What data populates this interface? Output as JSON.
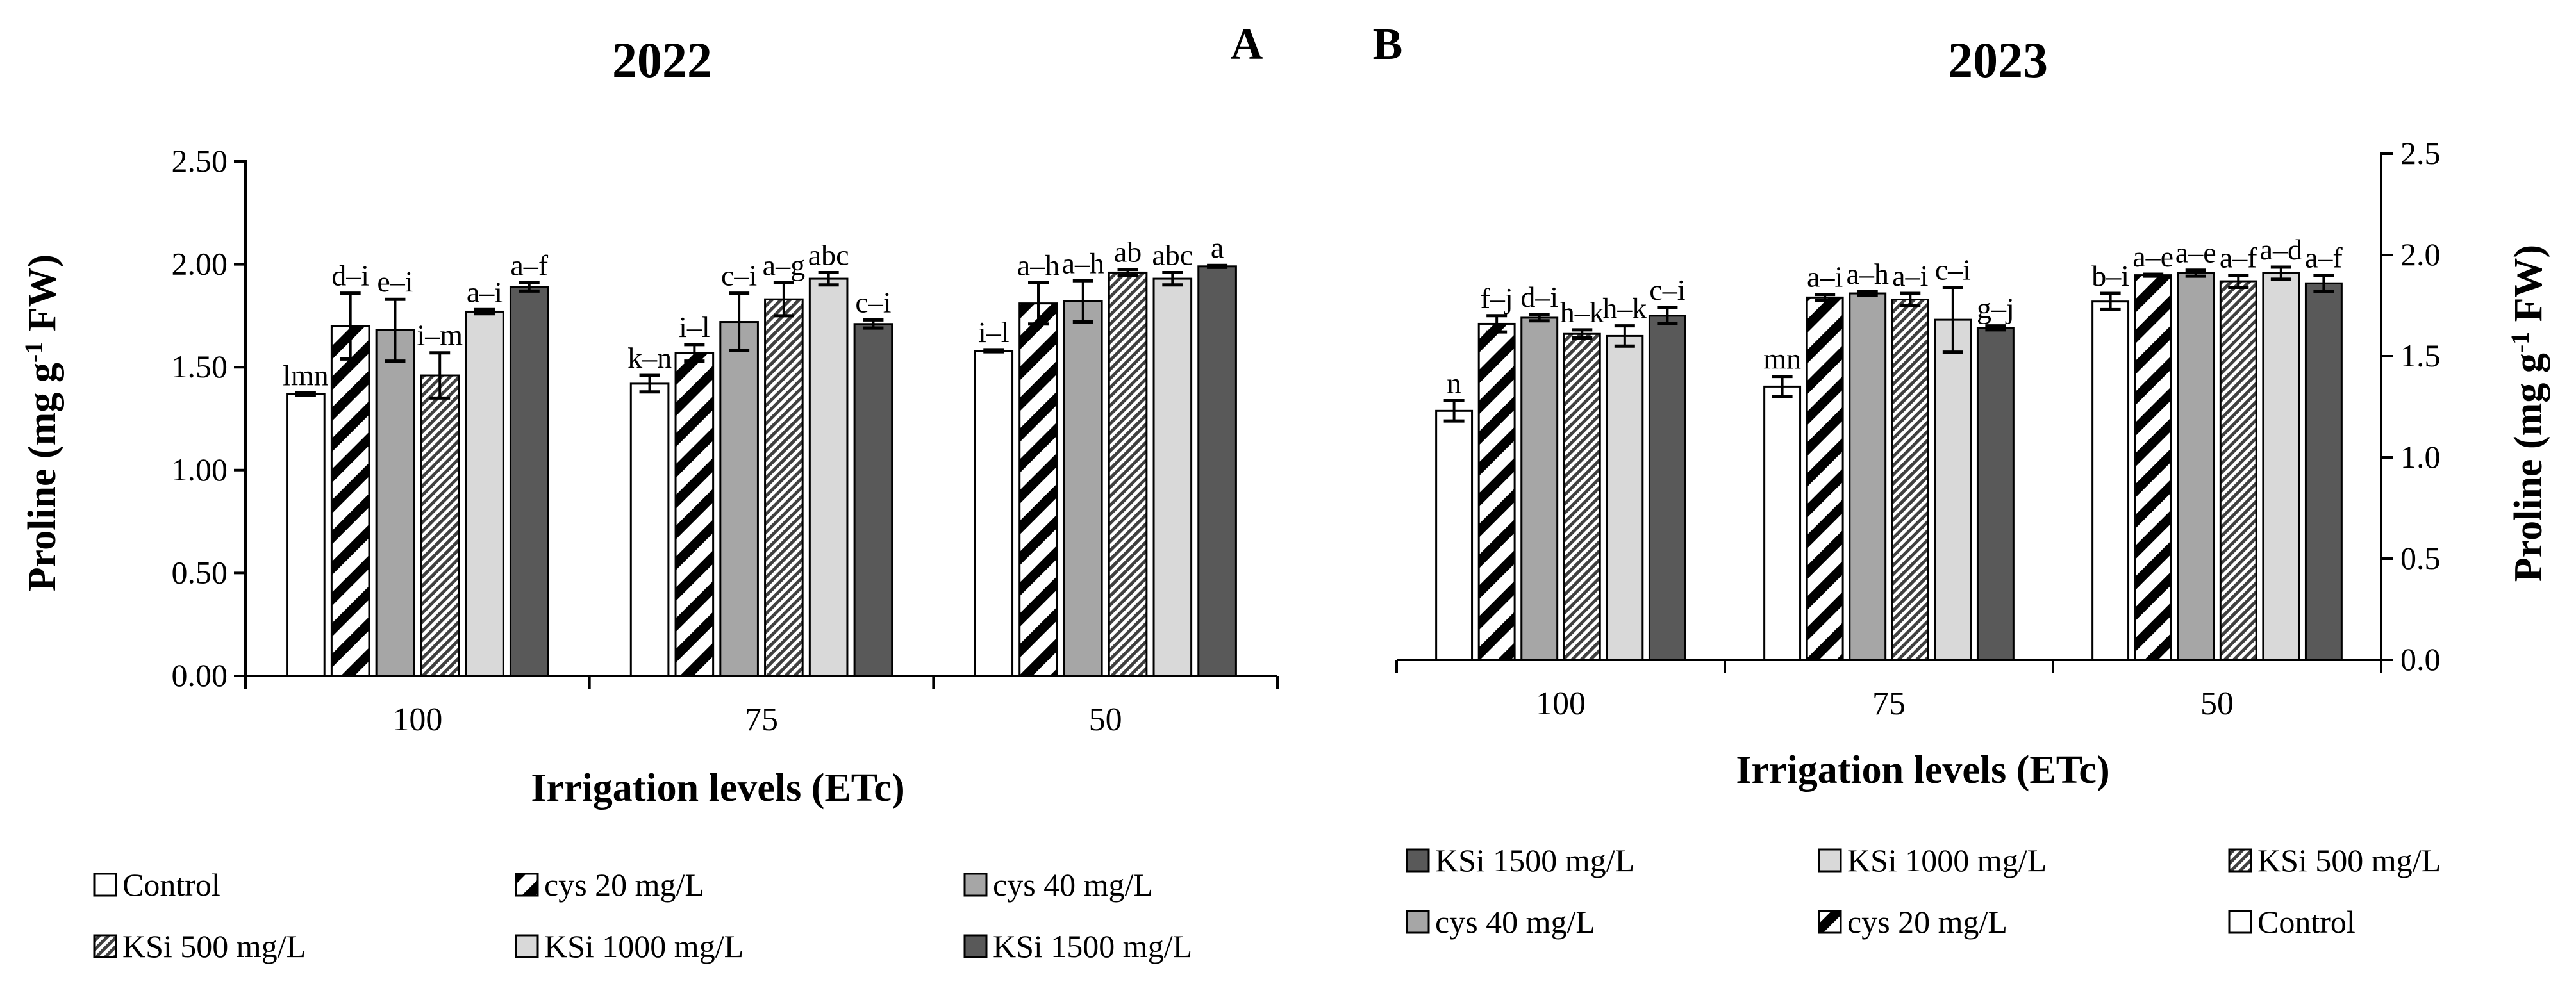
{
  "chart_data": [
    {
      "type": "bar",
      "panel_letter": "A",
      "title": "2022",
      "xlabel": "Irrigation levels (ETc)",
      "ylabel": "Proline (mg g",
      "ylabel_sup": "-1",
      "ylabel_end": " FW)",
      "yaxis_side": "left",
      "ylim": [
        0,
        2.5
      ],
      "ytick_values": [
        0,
        0.5,
        1.0,
        1.5,
        2.0,
        2.5
      ],
      "ytick_labels": [
        "0.00",
        "0.50",
        "1.00",
        "1.50",
        "2.00",
        "2.50"
      ],
      "categories": [
        "100",
        "75",
        "50"
      ],
      "series": [
        {
          "name": "Control",
          "pattern": "white",
          "values": [
            1.37,
            1.42,
            1.58
          ],
          "errors": [
            0.005,
            0.04,
            0.005
          ],
          "letters": [
            "lmn",
            "k–n",
            "i–l"
          ]
        },
        {
          "name": "cys 20 mg/L",
          "pattern": "bigstripe",
          "values": [
            1.7,
            1.57,
            1.81
          ],
          "errors": [
            0.16,
            0.04,
            0.1
          ],
          "letters": [
            "d–i",
            "i–l",
            "a–h"
          ]
        },
        {
          "name": "cys 40 mg/L",
          "pattern": "gray",
          "values": [
            1.68,
            1.72,
            1.82
          ],
          "errors": [
            0.15,
            0.14,
            0.1
          ],
          "letters": [
            "e–i",
            "c–i",
            "a–h"
          ]
        },
        {
          "name": "KSi 500 mg/L",
          "pattern": "finestripe",
          "values": [
            1.46,
            1.83,
            1.96
          ],
          "errors": [
            0.11,
            0.08,
            0.015
          ],
          "letters": [
            "i–m",
            "a–g",
            "ab"
          ]
        },
        {
          "name": "KSi 1000 mg/L",
          "pattern": "light",
          "values": [
            1.77,
            1.93,
            1.93
          ],
          "errors": [
            0.01,
            0.03,
            0.03
          ],
          "letters": [
            "a–i",
            "abc",
            "abc"
          ]
        },
        {
          "name": "KSi 1500 mg/L",
          "pattern": "dark",
          "values": [
            1.89,
            1.71,
            1.99
          ],
          "errors": [
            0.02,
            0.02,
            0.005
          ],
          "letters": [
            "a–f",
            "c–i",
            "a"
          ]
        }
      ],
      "legend": [
        "Control",
        "cys 20 mg/L",
        "cys 40 mg/L",
        "KSi 500 mg/L",
        "KSi 1000 mg/L",
        "KSi 1500 mg/L"
      ],
      "legend_placement": "bottom"
    },
    {
      "type": "bar",
      "panel_letter": "B",
      "title": "2023",
      "xlabel": "Irrigation levels (ETc)",
      "ylabel": "Proline (mg g",
      "ylabel_sup": "-1",
      "ylabel_end": " FW)",
      "yaxis_side": "right",
      "ylim": [
        0,
        2.5
      ],
      "ytick_values": [
        0,
        0.5,
        1.0,
        1.5,
        2.0,
        2.5
      ],
      "ytick_labels": [
        "0.0",
        "0.5",
        "1.0",
        "1.5",
        "2.0",
        "2.5"
      ],
      "categories": [
        "100",
        "75",
        "50"
      ],
      "series": [
        {
          "name": "Control",
          "pattern": "white",
          "values": [
            1.23,
            1.35,
            1.77
          ],
          "errors": [
            0.05,
            0.05,
            0.04
          ],
          "letters": [
            "n",
            "mn",
            "b–i"
          ]
        },
        {
          "name": "cys 20 mg/L",
          "pattern": "bigstripe",
          "values": [
            1.66,
            1.79,
            1.9
          ],
          "errors": [
            0.04,
            0.015,
            0.005
          ],
          "letters": [
            "f–j",
            "a–i",
            "a–e"
          ]
        },
        {
          "name": "cys 40 mg/L",
          "pattern": "gray",
          "values": [
            1.69,
            1.81,
            1.91
          ],
          "errors": [
            0.015,
            0.01,
            0.015
          ],
          "letters": [
            "d–i",
            "a–h",
            "a–e"
          ]
        },
        {
          "name": "KSi 500 mg/L",
          "pattern": "finestripe",
          "values": [
            1.61,
            1.78,
            1.87
          ],
          "errors": [
            0.02,
            0.03,
            0.03
          ],
          "letters": [
            "h–k",
            "a–i",
            "a–f"
          ]
        },
        {
          "name": "KSi 1000 mg/L",
          "pattern": "light",
          "values": [
            1.6,
            1.68,
            1.91
          ],
          "errors": [
            0.05,
            0.16,
            0.03
          ],
          "letters": [
            "h–k",
            "c–i",
            "a–d"
          ]
        },
        {
          "name": "KSi 1500 mg/L",
          "pattern": "dark",
          "values": [
            1.7,
            1.64,
            1.86
          ],
          "errors": [
            0.04,
            0.01,
            0.04
          ],
          "letters": [
            "c–i",
            "g–j",
            "a–f"
          ]
        }
      ],
      "legend": [
        "KSi 1500 mg/L",
        "KSi 1000 mg/L",
        "KSi 500 mg/L",
        "cys 40 mg/L",
        "cys 20 mg/L",
        "Control"
      ],
      "legend_placement": "bottom"
    }
  ]
}
